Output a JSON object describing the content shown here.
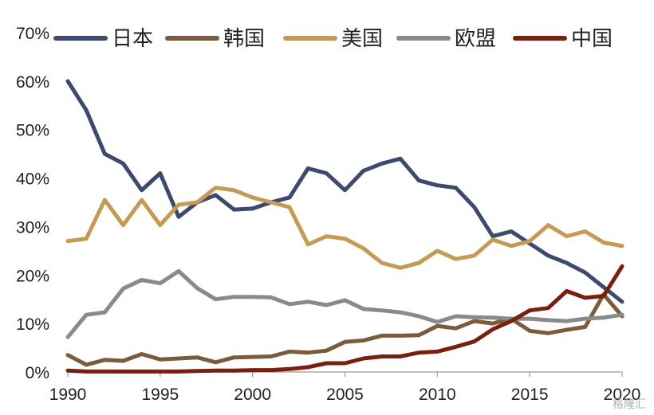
{
  "chart_data": {
    "type": "line",
    "x": [
      1990,
      1991,
      1992,
      1993,
      1994,
      1995,
      1996,
      1997,
      1998,
      1999,
      2000,
      2001,
      2002,
      2003,
      2004,
      2005,
      2006,
      2007,
      2008,
      2009,
      2010,
      2011,
      2012,
      2013,
      2014,
      2015,
      2016,
      2017,
      2018,
      2019,
      2020
    ],
    "x_ticks": [
      "1990",
      "1995",
      "2000",
      "2005",
      "2010",
      "2015",
      "2020"
    ],
    "y_ticks": [
      "0%",
      "10%",
      "20%",
      "30%",
      "40%",
      "50%",
      "60%",
      "70%"
    ],
    "xlim": [
      1990,
      2020
    ],
    "ylim": [
      0,
      70
    ],
    "grid": false,
    "legend": "top",
    "series": [
      {
        "name": "日本",
        "color": "#3d4a6e",
        "values": [
          60,
          54,
          45,
          43,
          37.5,
          41,
          32,
          35,
          36.5,
          33.5,
          33.7,
          35,
          36,
          42,
          41,
          37.5,
          41.5,
          43,
          44,
          39.5,
          38.5,
          38,
          34,
          28,
          29,
          26.5,
          24,
          22.5,
          20.5,
          17.5,
          14.5
        ]
      },
      {
        "name": "韩国",
        "color": "#7a5c3c",
        "values": [
          3.5,
          1.5,
          2.5,
          2.3,
          3.7,
          2.6,
          2.8,
          3,
          2,
          3,
          3.1,
          3.2,
          4.2,
          4,
          4.4,
          6.2,
          6.5,
          7.5,
          7.5,
          7.6,
          9.5,
          9,
          10.5,
          10,
          11,
          8.5,
          8,
          8.7,
          9.3,
          16,
          11.5
        ]
      },
      {
        "name": "美国",
        "color": "#c49a55",
        "values": [
          27,
          27.5,
          35.5,
          30.3,
          35.5,
          30.3,
          34.5,
          35,
          38,
          37.5,
          36,
          35,
          34,
          26.3,
          28,
          27.5,
          25.5,
          22.5,
          21.5,
          22.5,
          25,
          23.3,
          24,
          27.3,
          26,
          27,
          30.3,
          28,
          29,
          26.7,
          26
        ]
      },
      {
        "name": "欧盟",
        "color": "#8a8a8a",
        "values": [
          7.2,
          11.8,
          12.3,
          17.2,
          19,
          18.3,
          20.8,
          17.3,
          15,
          15.5,
          15.5,
          15.4,
          14,
          14.5,
          13.8,
          14.8,
          13,
          12.7,
          12.3,
          11.5,
          10.3,
          11.5,
          11.3,
          11.2,
          11,
          11,
          10.7,
          10.5,
          11,
          11.2,
          11.8
        ]
      },
      {
        "name": "中国",
        "color": "#7a1f0e",
        "values": [
          0.3,
          0.1,
          0.1,
          0.1,
          0.1,
          0.1,
          0.1,
          0.2,
          0.3,
          0.3,
          0.4,
          0.4,
          0.6,
          1,
          1.8,
          1.8,
          2.8,
          3.2,
          3.2,
          4,
          4.2,
          5.2,
          6.3,
          8.8,
          10.5,
          12.7,
          13.2,
          16.7,
          15.3,
          15.7,
          21.8
        ]
      }
    ]
  },
  "watermark": "格隆汇"
}
